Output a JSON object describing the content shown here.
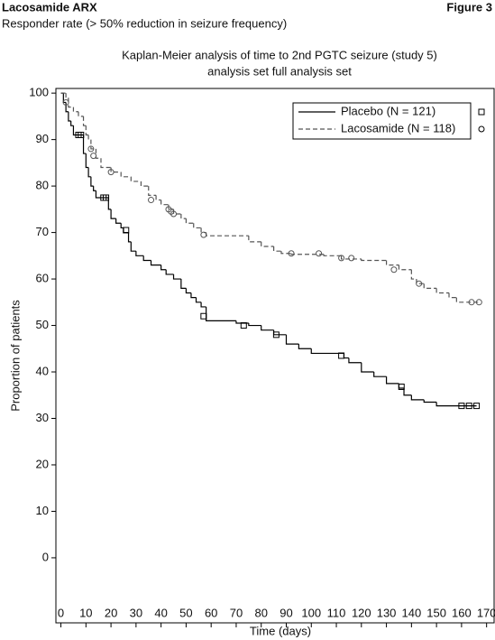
{
  "header": {
    "title": "Lacosamide ARX",
    "figure": "Figure 3",
    "subtitle": "Responder rate (> 50% reduction in seizure frequency)"
  },
  "chart_data": {
    "type": "line",
    "step": "post",
    "title": [
      "Kaplan-Meier analysis of time to 2nd PGTC seizure (study 5)",
      "analysis set full analysis set"
    ],
    "x_label": "Time (days)",
    "y_label": "Proportion of patients",
    "xlim": [
      -2,
      173
    ],
    "ylim": [
      -14,
      101
    ],
    "xticks": [
      0,
      10,
      20,
      30,
      40,
      50,
      60,
      70,
      80,
      90,
      100,
      110,
      120,
      130,
      140,
      150,
      160,
      170
    ],
    "yticks": [
      0,
      10,
      20,
      30,
      40,
      50,
      60,
      70,
      80,
      90,
      100
    ],
    "series": [
      {
        "name": "Placebo (N = 121)",
        "color": "#000000",
        "dash": "none",
        "marker": "square",
        "x": [
          0,
          1,
          2,
          3,
          4,
          5,
          9,
          10,
          11,
          12,
          13,
          14,
          19,
          20,
          22,
          24,
          25,
          27,
          28,
          30,
          33,
          36,
          40,
          42,
          45,
          48,
          50,
          52,
          54,
          56,
          58,
          70,
          75,
          80,
          85,
          90,
          95,
          100,
          113,
          115,
          120,
          125,
          130,
          135,
          137,
          140,
          145,
          150
        ],
        "values": [
          100,
          98,
          96,
          94,
          93,
          91,
          87,
          84,
          82,
          80,
          79,
          77.5,
          75,
          73,
          72,
          71,
          70,
          68,
          66,
          65,
          64,
          63,
          62,
          61,
          60,
          58,
          57,
          56,
          55,
          54,
          51,
          50.5,
          50,
          49,
          48,
          46,
          45,
          44,
          43,
          42,
          40,
          39,
          37.5,
          36.5,
          35,
          34,
          33.5,
          32.7
        ],
        "censored_x": [
          7,
          8,
          17,
          18,
          26,
          57,
          73,
          86,
          112,
          136,
          160,
          163,
          166
        ],
        "censored_values": [
          91,
          91,
          77.5,
          77.5,
          70.5,
          52,
          50,
          48,
          43.5,
          36.8,
          32.7,
          32.7,
          32.7
        ]
      },
      {
        "name": "Lacosamide (N = 118)",
        "color": "#555555",
        "dash": "5,3",
        "marker": "circle",
        "x": [
          0,
          2,
          3,
          5,
          7,
          9,
          10,
          11,
          12,
          14,
          16,
          20,
          24,
          28,
          32,
          35,
          38,
          40,
          43,
          45,
          48,
          50,
          53,
          56,
          58,
          75,
          80,
          85,
          88,
          92,
          105,
          112,
          120,
          130,
          135,
          140,
          142,
          145,
          150,
          155,
          158
        ],
        "values": [
          100,
          99,
          97,
          96,
          95,
          93,
          91,
          90,
          88,
          86,
          84,
          83,
          82,
          81,
          80,
          78,
          77,
          76,
          75,
          74,
          73,
          72,
          71,
          70,
          69.3,
          68,
          67,
          66,
          65.5,
          65.3,
          65,
          64.3,
          64,
          63,
          62,
          60,
          59,
          58,
          57,
          56,
          55
        ],
        "censored_x": [
          2,
          12,
          13,
          20,
          36,
          43,
          44,
          45,
          57,
          92,
          103,
          112,
          116,
          133,
          143,
          164,
          167
        ],
        "censored_values": [
          98,
          88,
          86.5,
          83,
          77,
          75,
          74.5,
          74,
          69.5,
          65.5,
          65.5,
          64.5,
          64.5,
          62,
          59,
          55,
          55
        ]
      }
    ]
  }
}
